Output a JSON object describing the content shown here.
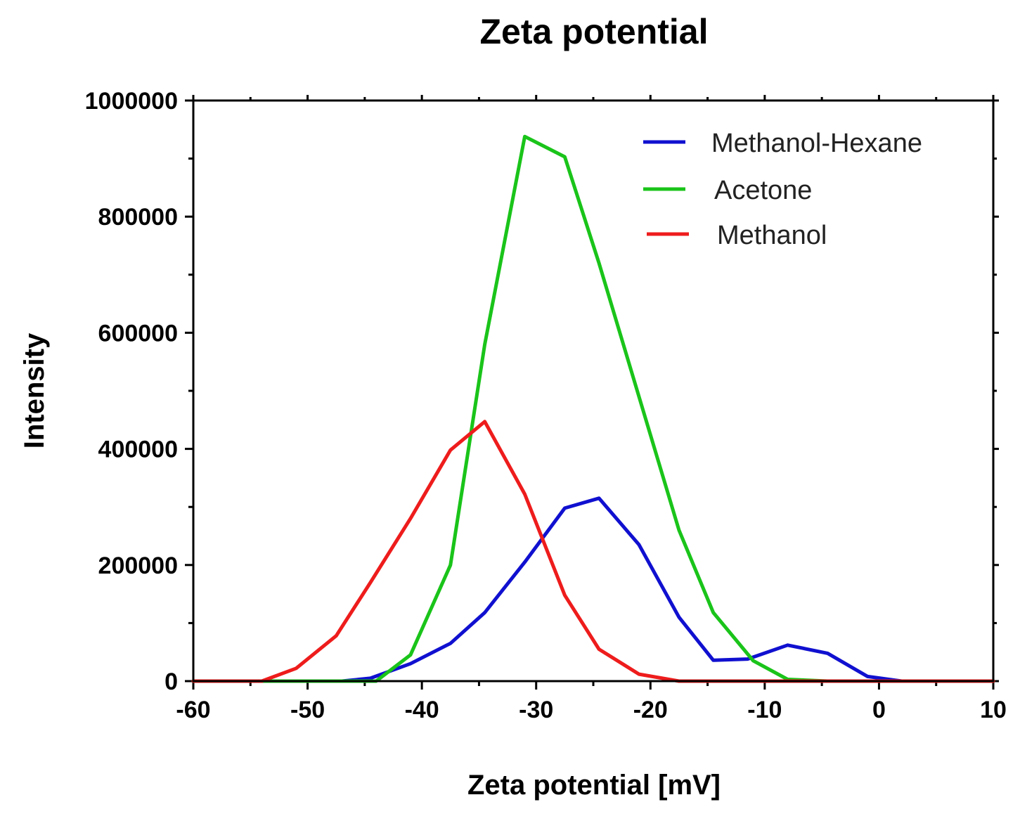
{
  "chart_data": {
    "type": "line",
    "title": "Zeta potential",
    "xlabel": "Zeta potential [mV]",
    "ylabel": "Intensity",
    "xlim": [
      -60,
      10
    ],
    "ylim": [
      0,
      1000000
    ],
    "x_ticks": [
      "-60",
      "-50",
      "-40",
      "-30",
      "-20",
      "-10",
      "0",
      "10"
    ],
    "y_ticks": [
      "0",
      "200000",
      "400000",
      "600000",
      "800000",
      "1000000"
    ],
    "grid": false,
    "legend_position": "top-right",
    "series": [
      {
        "name": "Methanol-Hexane",
        "color": "#1010d0",
        "x": [
          -60,
          -47,
          -44.5,
          -41,
          -37.5,
          -34.5,
          -31,
          -27.5,
          -24.5,
          -21,
          -17.5,
          -14.5,
          -11.5,
          -8,
          -4.5,
          -1,
          2,
          10
        ],
        "y": [
          0,
          0,
          5000,
          30000,
          65000,
          118000,
          205000,
          298000,
          315000,
          235000,
          110000,
          36000,
          38000,
          62000,
          48000,
          8000,
          0,
          0
        ]
      },
      {
        "name": "Acetone",
        "color": "#1ac41a",
        "x": [
          -60,
          -44,
          -41,
          -37.5,
          -34.5,
          -31,
          -27.5,
          -24.5,
          -21,
          -17.5,
          -14.5,
          -11,
          -8,
          -4.5,
          10
        ],
        "y": [
          0,
          0,
          45000,
          200000,
          580000,
          938000,
          903000,
          720000,
          490000,
          260000,
          118000,
          35000,
          3000,
          0,
          0
        ]
      },
      {
        "name": "Methanol",
        "color": "#ee1c1c",
        "x": [
          -60,
          -54,
          -51,
          -47.5,
          -44.5,
          -41,
          -37.5,
          -34.5,
          -31,
          -27.5,
          -24.5,
          -21,
          -17.5,
          -14.5,
          -8,
          10
        ],
        "y": [
          0,
          0,
          22000,
          78000,
          170000,
          280000,
          398000,
          447000,
          322000,
          148000,
          55000,
          12000,
          0,
          0,
          0,
          0
        ]
      }
    ]
  }
}
